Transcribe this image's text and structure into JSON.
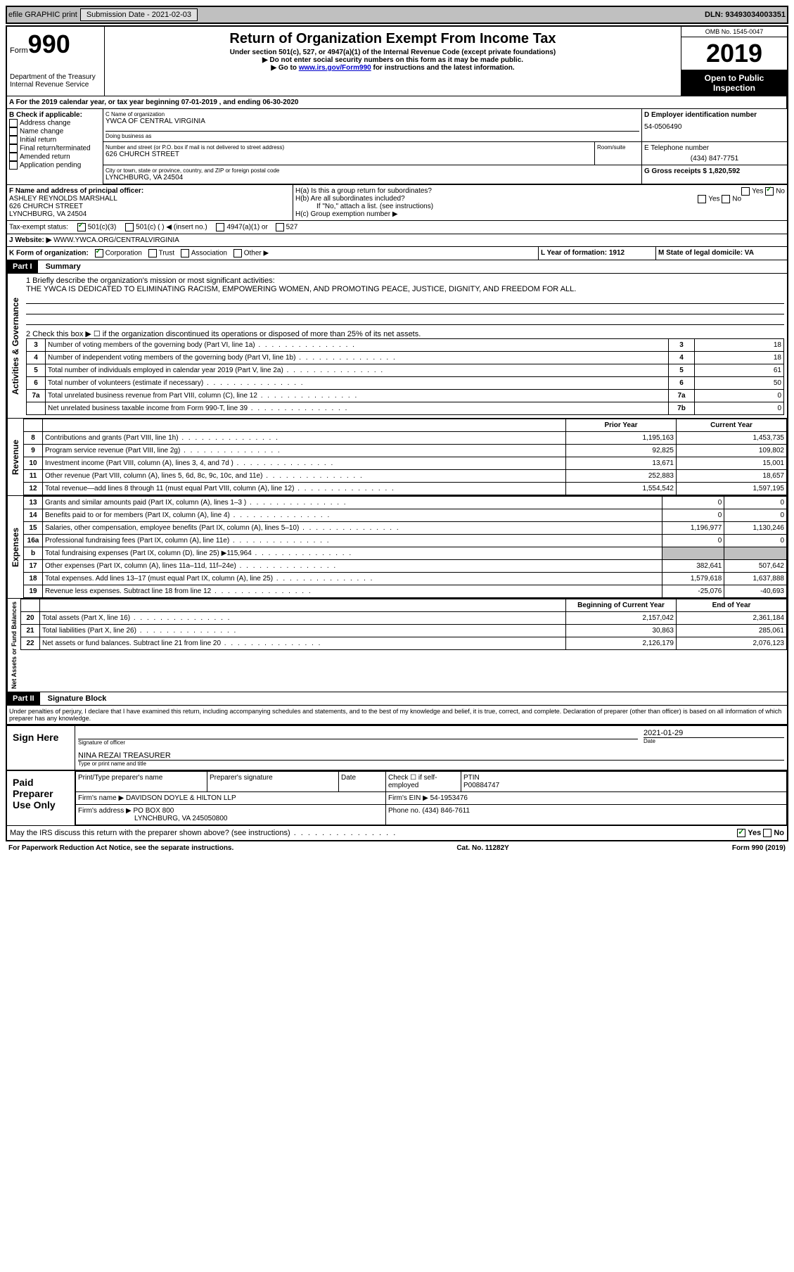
{
  "topbar": {
    "efile": "efile GRAPHIC print",
    "submission_label": "Submission Date - 2021-02-03",
    "dln": "DLN: 93493034003351"
  },
  "header": {
    "form_prefix": "Form",
    "form_number": "990",
    "dept": "Department of the Treasury",
    "irs": "Internal Revenue Service",
    "title": "Return of Organization Exempt From Income Tax",
    "subtitle": "Under section 501(c), 527, or 4947(a)(1) of the Internal Revenue Code (except private foundations)",
    "note1": "▶ Do not enter social security numbers on this form as it may be made public.",
    "note2_pre": "▶ Go to ",
    "note2_link": "www.irs.gov/Form990",
    "note2_post": " for instructions and the latest information.",
    "omb": "OMB No. 1545-0047",
    "year": "2019",
    "opi": "Open to Public Inspection"
  },
  "period": {
    "text": "A For the 2019 calendar year, or tax year beginning 07-01-2019    , and ending 06-30-2020"
  },
  "boxB": {
    "title": "B Check if applicable:",
    "items": [
      "Address change",
      "Name change",
      "Initial return",
      "Final return/terminated",
      "Amended return",
      "Application pending"
    ]
  },
  "boxC": {
    "label": "C Name of organization",
    "name": "YWCA OF CENTRAL VIRGINIA",
    "dba_label": "Doing business as",
    "addr_label": "Number and street (or P.O. box if mail is not delivered to street address)",
    "addr": "626 CHURCH STREET",
    "room_label": "Room/suite",
    "city_label": "City or town, state or province, country, and ZIP or foreign postal code",
    "city": "LYNCHBURG, VA  24504"
  },
  "boxD": {
    "label": "D Employer identification number",
    "value": "54-0506490"
  },
  "boxE": {
    "label": "E Telephone number",
    "value": "(434) 847-7751"
  },
  "boxG": {
    "label": "G Gross receipts $ 1,820,592"
  },
  "boxF": {
    "label": "F  Name and address of principal officer:",
    "name": "ASHLEY REYNOLDS MARSHALL",
    "addr1": "626 CHURCH STREET",
    "addr2": "LYNCHBURG, VA  24504"
  },
  "boxH": {
    "ha": "H(a)  Is this a group return for subordinates?",
    "hb": "H(b)  Are all subordinates included?",
    "hb_note": "If \"No,\" attach a list. (see instructions)",
    "hc": "H(c)  Group exemption number ▶",
    "yes": "Yes",
    "no": "No"
  },
  "taxStatus": {
    "label": "Tax-exempt status:",
    "opts": [
      "501(c)(3)",
      "501(c) (  ) ◀ (insert no.)",
      "4947(a)(1) or",
      "527"
    ]
  },
  "boxJ": {
    "label": "J",
    "text": "Website: ▶",
    "url": "WWW.YWCA.ORG/CENTRALVIRGINIA"
  },
  "boxK": {
    "label": "K Form of organization:",
    "opts": [
      "Corporation",
      "Trust",
      "Association",
      "Other ▶"
    ]
  },
  "boxL": {
    "label": "L Year of formation: 1912"
  },
  "boxM": {
    "label": "M State of legal domicile: VA"
  },
  "part1": {
    "title": "Part I",
    "subtitle": "Summary",
    "line1_label": "1  Briefly describe the organization's mission or most significant activities:",
    "mission": "THE YWCA IS DEDICATED TO ELIMINATING RACISM, EMPOWERING WOMEN, AND PROMOTING PEACE, JUSTICE, DIGNITY, AND FREEDOM FOR ALL.",
    "line2": "2   Check this box ▶ ☐  if the organization discontinued its operations or disposed of more than 25% of its net assets.",
    "side_activities": "Activities & Governance",
    "side_revenue": "Revenue",
    "side_expenses": "Expenses",
    "side_net": "Net Assets or Fund Balances",
    "col_prior": "Prior Year",
    "col_current": "Current Year",
    "col_boy": "Beginning of Current Year",
    "col_eoy": "End of Year",
    "gov_rows": [
      {
        "n": "3",
        "label": "Number of voting members of the governing body (Part VI, line 1a)",
        "box": "3",
        "val": "18"
      },
      {
        "n": "4",
        "label": "Number of independent voting members of the governing body (Part VI, line 1b)",
        "box": "4",
        "val": "18"
      },
      {
        "n": "5",
        "label": "Total number of individuals employed in calendar year 2019 (Part V, line 2a)",
        "box": "5",
        "val": "61"
      },
      {
        "n": "6",
        "label": "Total number of volunteers (estimate if necessary)",
        "box": "6",
        "val": "50"
      },
      {
        "n": "7a",
        "label": "Total unrelated business revenue from Part VIII, column (C), line 12",
        "box": "7a",
        "val": "0"
      },
      {
        "n": "",
        "label": "Net unrelated business taxable income from Form 990-T, line 39",
        "box": "7b",
        "val": "0"
      }
    ],
    "rev_rows": [
      {
        "n": "8",
        "label": "Contributions and grants (Part VIII, line 1h)",
        "py": "1,195,163",
        "cy": "1,453,735"
      },
      {
        "n": "9",
        "label": "Program service revenue (Part VIII, line 2g)",
        "py": "92,825",
        "cy": "109,802"
      },
      {
        "n": "10",
        "label": "Investment income (Part VIII, column (A), lines 3, 4, and 7d )",
        "py": "13,671",
        "cy": "15,001"
      },
      {
        "n": "11",
        "label": "Other revenue (Part VIII, column (A), lines 5, 6d, 8c, 9c, 10c, and 11e)",
        "py": "252,883",
        "cy": "18,657"
      },
      {
        "n": "12",
        "label": "Total revenue—add lines 8 through 11 (must equal Part VIII, column (A), line 12)",
        "py": "1,554,542",
        "cy": "1,597,195"
      }
    ],
    "exp_rows": [
      {
        "n": "13",
        "label": "Grants and similar amounts paid (Part IX, column (A), lines 1–3 )",
        "py": "0",
        "cy": "0"
      },
      {
        "n": "14",
        "label": "Benefits paid to or for members (Part IX, column (A), line 4)",
        "py": "0",
        "cy": "0"
      },
      {
        "n": "15",
        "label": "Salaries, other compensation, employee benefits (Part IX, column (A), lines 5–10)",
        "py": "1,196,977",
        "cy": "1,130,246"
      },
      {
        "n": "16a",
        "label": "Professional fundraising fees (Part IX, column (A), line 11e)",
        "py": "0",
        "cy": "0"
      },
      {
        "n": "b",
        "label": "Total fundraising expenses (Part IX, column (D), line 25) ▶115,964",
        "py": "",
        "cy": "",
        "gray": true
      },
      {
        "n": "17",
        "label": "Other expenses (Part IX, column (A), lines 11a–11d, 11f–24e)",
        "py": "382,641",
        "cy": "507,642"
      },
      {
        "n": "18",
        "label": "Total expenses. Add lines 13–17 (must equal Part IX, column (A), line 25)",
        "py": "1,579,618",
        "cy": "1,637,888"
      },
      {
        "n": "19",
        "label": "Revenue less expenses. Subtract line 18 from line 12",
        "py": "-25,076",
        "cy": "-40,693"
      }
    ],
    "net_rows": [
      {
        "n": "20",
        "label": "Total assets (Part X, line 16)",
        "py": "2,157,042",
        "cy": "2,361,184"
      },
      {
        "n": "21",
        "label": "Total liabilities (Part X, line 26)",
        "py": "30,863",
        "cy": "285,061"
      },
      {
        "n": "22",
        "label": "Net assets or fund balances. Subtract line 21 from line 20",
        "py": "2,126,179",
        "cy": "2,076,123"
      }
    ]
  },
  "part2": {
    "title": "Part II",
    "subtitle": "Signature Block",
    "perjury": "Under penalties of perjury, I declare that I have examined this return, including accompanying schedules and statements, and to the best of my knowledge and belief, it is true, correct, and complete. Declaration of preparer (other than officer) is based on all information of which preparer has any knowledge.",
    "sign_here": "Sign Here",
    "sig_officer": "Signature of officer",
    "date_label": "Date",
    "date_val": "2021-01-29",
    "officer_name": "NINA REZAI  TREASURER",
    "type_name": "Type or print name and title",
    "paid": "Paid Preparer Use Only",
    "prep_name_label": "Print/Type preparer's name",
    "prep_sig_label": "Preparer's signature",
    "check_self": "Check ☐ if self-employed",
    "ptin_label": "PTIN",
    "ptin": "P00884747",
    "firm_name_label": "Firm's name    ▶",
    "firm_name": "DAVIDSON DOYLE & HILTON LLP",
    "firm_ein_label": "Firm's EIN ▶",
    "firm_ein": "54-1953476",
    "firm_addr_label": "Firm's address ▶",
    "firm_addr1": "PO BOX 800",
    "firm_addr2": "LYNCHBURG, VA  245050800",
    "phone_label": "Phone no.",
    "phone": "(434) 846-7611",
    "discuss": "May the IRS discuss this return with the preparer shown above? (see instructions)"
  },
  "footer": {
    "pra": "For Paperwork Reduction Act Notice, see the separate instructions.",
    "cat": "Cat. No. 11282Y",
    "form": "Form 990 (2019)"
  }
}
